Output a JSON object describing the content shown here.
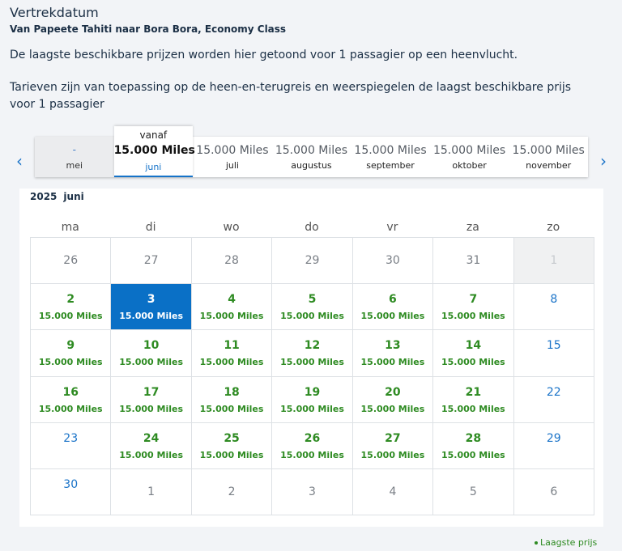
{
  "header": {
    "title": "Vertrekdatum",
    "subtitle": "Van Papeete Tahiti naar Bora Bora, Economy Class",
    "info_line1": "De laagste beschikbare prijzen worden hier getoond voor 1 passagier op een heenvlucht.",
    "info_line2": "Tarieven zijn van toepassing op de heen-en-terugreis en weerspiegelen de laagst beschikbare prijs voor 1 passagier"
  },
  "month_nav": {
    "prev_icon": "chevron-left-icon",
    "next_icon": "chevron-right-icon",
    "prev_glyph": "‹",
    "next_glyph": "›",
    "tabs": [
      {
        "price": "-",
        "month": "mei",
        "state": "disabled"
      },
      {
        "prefix": "vanaf",
        "price": "15.000 Miles",
        "month": "juni",
        "state": "selected"
      },
      {
        "price": "15.000 Miles",
        "month": "juli",
        "state": "normal"
      },
      {
        "price": "15.000 Miles",
        "month": "augustus",
        "state": "normal"
      },
      {
        "price": "15.000 Miles",
        "month": "september",
        "state": "normal"
      },
      {
        "price": "15.000 Miles",
        "month": "oktober",
        "state": "normal"
      },
      {
        "price": "15.000 Miles",
        "month": "november",
        "state": "normal"
      }
    ]
  },
  "calendar": {
    "year": "2025",
    "month": "juni",
    "weekdays": [
      "ma",
      "di",
      "wo",
      "do",
      "vr",
      "za",
      "zo"
    ],
    "weeks": [
      [
        {
          "day": "26",
          "type": "out"
        },
        {
          "day": "27",
          "type": "out"
        },
        {
          "day": "28",
          "type": "out"
        },
        {
          "day": "29",
          "type": "out"
        },
        {
          "day": "30",
          "type": "out"
        },
        {
          "day": "31",
          "type": "out"
        },
        {
          "day": "1",
          "type": "grey"
        }
      ],
      [
        {
          "day": "2",
          "type": "avail",
          "miles": "15.000 Miles"
        },
        {
          "day": "3",
          "type": "selected",
          "miles": "15.000 Miles"
        },
        {
          "day": "4",
          "type": "avail",
          "miles": "15.000 Miles"
        },
        {
          "day": "5",
          "type": "avail",
          "miles": "15.000 Miles"
        },
        {
          "day": "6",
          "type": "avail",
          "miles": "15.000 Miles"
        },
        {
          "day": "7",
          "type": "avail",
          "miles": "15.000 Miles"
        },
        {
          "day": "8",
          "type": "sunday"
        }
      ],
      [
        {
          "day": "9",
          "type": "avail",
          "miles": "15.000 Miles"
        },
        {
          "day": "10",
          "type": "avail",
          "miles": "15.000 Miles"
        },
        {
          "day": "11",
          "type": "avail",
          "miles": "15.000 Miles"
        },
        {
          "day": "12",
          "type": "avail",
          "miles": "15.000 Miles"
        },
        {
          "day": "13",
          "type": "avail",
          "miles": "15.000 Miles"
        },
        {
          "day": "14",
          "type": "avail",
          "miles": "15.000 Miles"
        },
        {
          "day": "15",
          "type": "sunday"
        }
      ],
      [
        {
          "day": "16",
          "type": "avail",
          "miles": "15.000 Miles"
        },
        {
          "day": "17",
          "type": "avail",
          "miles": "15.000 Miles"
        },
        {
          "day": "18",
          "type": "avail",
          "miles": "15.000 Miles"
        },
        {
          "day": "19",
          "type": "avail",
          "miles": "15.000 Miles"
        },
        {
          "day": "20",
          "type": "avail",
          "miles": "15.000 Miles"
        },
        {
          "day": "21",
          "type": "avail",
          "miles": "15.000 Miles"
        },
        {
          "day": "22",
          "type": "sunday"
        }
      ],
      [
        {
          "day": "23",
          "type": "sunday"
        },
        {
          "day": "24",
          "type": "avail",
          "miles": "15.000 Miles"
        },
        {
          "day": "25",
          "type": "avail",
          "miles": "15.000 Miles"
        },
        {
          "day": "26",
          "type": "avail",
          "miles": "15.000 Miles"
        },
        {
          "day": "27",
          "type": "avail",
          "miles": "15.000 Miles"
        },
        {
          "day": "28",
          "type": "avail",
          "miles": "15.000 Miles"
        },
        {
          "day": "29",
          "type": "sunday"
        }
      ],
      [
        {
          "day": "30",
          "type": "sunday"
        },
        {
          "day": "1",
          "type": "out"
        },
        {
          "day": "2",
          "type": "out"
        },
        {
          "day": "3",
          "type": "out"
        },
        {
          "day": "4",
          "type": "out"
        },
        {
          "day": "5",
          "type": "out"
        },
        {
          "day": "6",
          "type": "out"
        }
      ]
    ]
  },
  "legend": {
    "label": "Laagste prijs",
    "color": "#2e8b22"
  },
  "colors": {
    "accent_blue": "#0a70c6",
    "price_green": "#2e8b22",
    "link_blue": "#1a73c8"
  }
}
